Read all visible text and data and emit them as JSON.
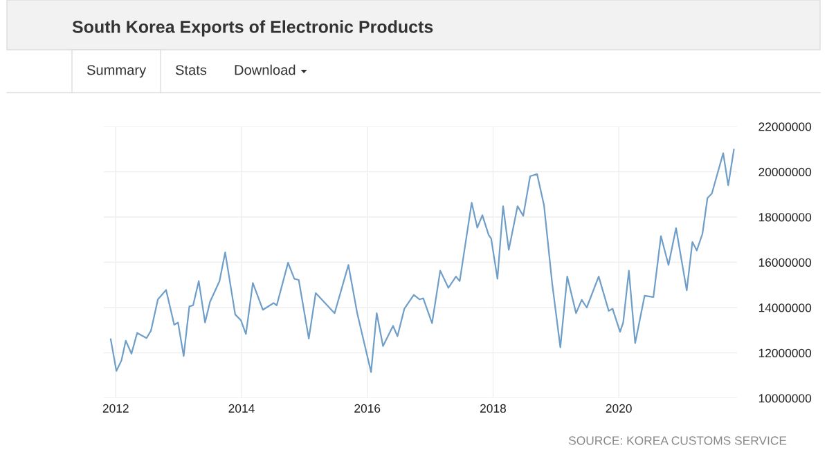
{
  "chart_data": {
    "type": "line",
    "title": "South Korea Exports of Electronic Products",
    "annotations": [
      "Summary",
      "Stats",
      "Download",
      "SOURCE: KOREA CUSTOMS SERVICE"
    ],
    "x": [
      2011.92,
      2012.01,
      2012.09,
      2012.16,
      2012.25,
      2012.34,
      2012.49,
      2012.56,
      2012.67,
      2012.8,
      2012.93,
      2012.99,
      2013.08,
      2013.17,
      2013.23,
      2013.32,
      2013.42,
      2013.5,
      2013.65,
      2013.74,
      2013.9,
      2013.99,
      2014.07,
      2014.18,
      2014.34,
      2014.51,
      2014.56,
      2014.74,
      2014.84,
      2014.91,
      2015.07,
      2015.18,
      2015.48,
      2015.7,
      2015.84,
      2016.06,
      2016.15,
      2016.25,
      2016.41,
      2016.48,
      2016.59,
      2016.74,
      2016.83,
      2016.89,
      2017.03,
      2017.16,
      2017.29,
      2017.41,
      2017.47,
      2017.66,
      2017.75,
      2017.83,
      2017.93,
      2017.97,
      2018.07,
      2018.16,
      2018.25,
      2018.39,
      2018.48,
      2018.59,
      2018.7,
      2018.81,
      2018.94,
      2019.07,
      2019.18,
      2019.32,
      2019.41,
      2019.49,
      2019.68,
      2019.84,
      2019.9,
      2020.02,
      2020.07,
      2020.16,
      2020.26,
      2020.41,
      2020.55,
      2020.67,
      2020.79,
      2020.91,
      2021.08,
      2021.17,
      2021.24,
      2021.33,
      2021.41,
      2021.48,
      2021.66,
      2021.74,
      2021.83
    ],
    "series": [
      {
        "color": "#6f9fc8",
        "values": [
          12600000,
          11200000,
          11660000,
          12540000,
          11960000,
          12880000,
          12650000,
          12980000,
          14360000,
          14780000,
          13240000,
          13340000,
          11860000,
          14050000,
          14100000,
          15170000,
          13340000,
          14260000,
          15170000,
          16440000,
          13690000,
          13440000,
          12830000,
          15090000,
          13900000,
          14200000,
          14100000,
          15980000,
          15270000,
          15220000,
          12630000,
          14640000,
          13750000,
          15880000,
          13750000,
          11150000,
          13750000,
          12300000,
          13190000,
          12730000,
          13950000,
          14560000,
          14360000,
          14410000,
          13310000,
          15630000,
          14870000,
          15370000,
          15170000,
          18630000,
          17530000,
          18080000,
          17210000,
          17050000,
          15270000,
          18480000,
          16550000,
          18480000,
          18050000,
          19800000,
          19900000,
          18530000,
          15070000,
          12240000,
          15370000,
          13750000,
          14340000,
          14000000,
          15370000,
          13850000,
          13950000,
          12930000,
          13340000,
          15630000,
          12430000,
          14520000,
          14460000,
          17160000,
          15880000,
          17510000,
          14760000,
          16900000,
          16520000,
          17260000,
          18840000,
          19040000,
          20820000,
          19400000,
          20980000
        ]
      }
    ],
    "xlim": [
      2011.81,
      2021.88
    ],
    "xticks": [
      2012,
      2014,
      2016,
      2018,
      2020
    ],
    "ylim": [
      10000000,
      22000000
    ],
    "yticks": [
      10000000,
      12000000,
      14000000,
      16000000,
      18000000,
      20000000,
      22000000
    ],
    "grid": true
  }
}
